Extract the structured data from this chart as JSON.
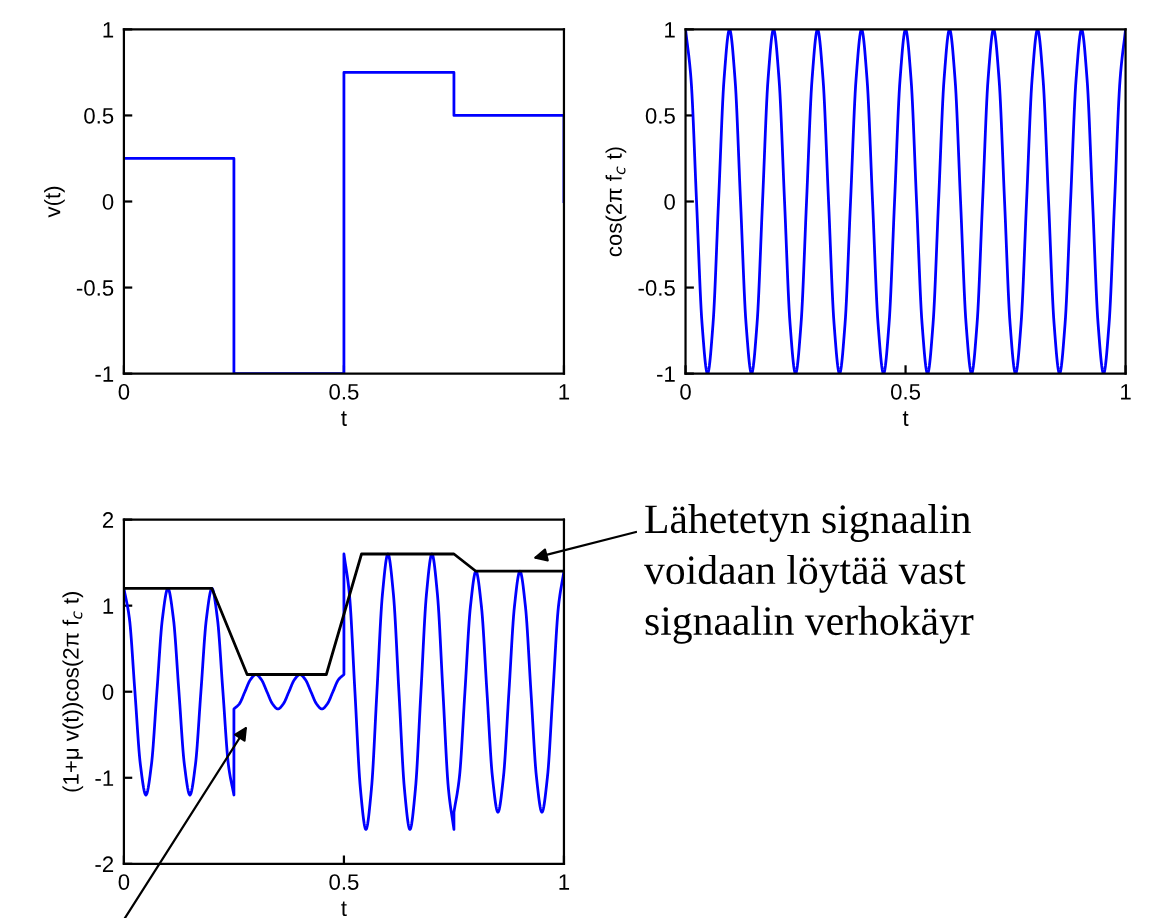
{
  "chart_data": [
    {
      "type": "line",
      "xlabel": "t",
      "ylabel": "v(t)",
      "xlim": [
        0,
        1
      ],
      "ylim": [
        -1,
        1
      ],
      "xticks": [
        0,
        0.5,
        1
      ],
      "yticks": [
        -1,
        -0.5,
        0,
        0.5,
        1
      ],
      "grid": false,
      "legend": false,
      "series": [
        {
          "color": "#0000ff",
          "x": [
            0,
            0.25,
            0.25,
            0.5,
            0.5,
            0.75,
            0.75,
            1,
            1
          ],
          "values": [
            0.25,
            0.25,
            -1,
            -1,
            0.75,
            0.75,
            0.5,
            0.5,
            0
          ]
        }
      ]
    },
    {
      "type": "line",
      "xlabel": "t",
      "ylabel": "cos(2π f$_{c}$ t)",
      "xlim": [
        0,
        1
      ],
      "ylim": [
        -1,
        1
      ],
      "xticks": [
        0,
        0.5,
        1
      ],
      "yticks": [
        -1,
        -0.5,
        0,
        0.5,
        1
      ],
      "grid": false,
      "legend": false,
      "series": [
        {
          "color": "#0000ff",
          "x": [
            0,
            0.0125,
            0.025,
            0.0375,
            0.05,
            0.0625,
            0.075,
            0.0875,
            0.1,
            0.1125,
            0.125,
            0.1375,
            0.15,
            0.1625,
            0.175,
            0.1875,
            0.2,
            0.2125,
            0.225,
            0.2375,
            0.25,
            0.2625,
            0.275,
            0.2875,
            0.3,
            0.3125,
            0.325,
            0.3375,
            0.35,
            0.3625,
            0.375,
            0.3875,
            0.4,
            0.4125,
            0.425,
            0.4375,
            0.45,
            0.4625,
            0.475,
            0.4875,
            0.5,
            0.5125,
            0.525,
            0.5375,
            0.55,
            0.5625,
            0.575,
            0.5875,
            0.6,
            0.6125,
            0.625,
            0.6375,
            0.65,
            0.6625,
            0.675,
            0.6875,
            0.7,
            0.7125,
            0.725,
            0.7375,
            0.75,
            0.7625,
            0.775,
            0.7875,
            0.8,
            0.8125,
            0.825,
            0.8375,
            0.85,
            0.8625,
            0.875,
            0.8875,
            0.9,
            0.9125,
            0.925,
            0.9375,
            0.95,
            0.9625,
            0.975,
            0.9875,
            1
          ],
          "values": [
            1,
            0.71,
            0,
            -0.71,
            -1,
            -0.71,
            0,
            0.71,
            1,
            0.71,
            0,
            -0.71,
            -1,
            -0.71,
            0,
            0.71,
            1,
            0.71,
            0,
            -0.71,
            -1,
            -0.71,
            0,
            0.71,
            1,
            0.71,
            0,
            -0.71,
            -1,
            -0.71,
            0,
            0.71,
            1,
            0.71,
            0,
            -0.71,
            -1,
            -0.71,
            0,
            0.71,
            1,
            0.71,
            0,
            -0.71,
            -1,
            -0.71,
            0,
            0.71,
            1,
            0.71,
            0,
            -0.71,
            -1,
            -0.71,
            0,
            0.71,
            1,
            0.71,
            0,
            -0.71,
            -1,
            -0.71,
            0,
            0.71,
            1,
            0.71,
            0,
            -0.71,
            -1,
            -0.71,
            0,
            0.71,
            1,
            0.71,
            0,
            -0.71,
            -1,
            -0.71,
            0,
            0.71,
            1
          ]
        }
      ]
    },
    {
      "type": "line",
      "xlabel": "t",
      "ylabel": "(1+μ v(t))cos(2π f$_{c}$ t)",
      "xlim": [
        0,
        1
      ],
      "ylim": [
        -2,
        2
      ],
      "xticks": [
        0,
        0.5,
        1
      ],
      "yticks": [
        -2,
        -1,
        0,
        1,
        2
      ],
      "grid": false,
      "legend": false,
      "annotations": [
        "Lähetetyn signaalin\nvoidaan löytää vast\nsignaalin verhokäyr"
      ],
      "series": [
        {
          "color": "#0000ff",
          "x": [
            0,
            0.0125,
            0.025,
            0.0375,
            0.05,
            0.0625,
            0.075,
            0.0875,
            0.1,
            0.1125,
            0.125,
            0.1375,
            0.15,
            0.1625,
            0.175,
            0.1875,
            0.2,
            0.2125,
            0.225,
            0.2375,
            0.25,
            0.25,
            0.2625,
            0.275,
            0.2875,
            0.3,
            0.3125,
            0.325,
            0.3375,
            0.35,
            0.3625,
            0.375,
            0.3875,
            0.4,
            0.4125,
            0.425,
            0.4375,
            0.45,
            0.4625,
            0.475,
            0.4875,
            0.5,
            0.5,
            0.5125,
            0.525,
            0.5375,
            0.55,
            0.5625,
            0.575,
            0.5875,
            0.6,
            0.6125,
            0.625,
            0.6375,
            0.65,
            0.6625,
            0.675,
            0.6875,
            0.7,
            0.7125,
            0.725,
            0.7375,
            0.75,
            0.75,
            0.7625,
            0.775,
            0.7875,
            0.8,
            0.8125,
            0.825,
            0.8375,
            0.85,
            0.8625,
            0.875,
            0.8875,
            0.9,
            0.9125,
            0.925,
            0.9375,
            0.95,
            0.9625,
            0.975,
            0.9875,
            1
          ],
          "values": [
            1.2,
            0.85,
            0,
            -0.85,
            -1.2,
            -0.85,
            0,
            0.85,
            1.2,
            0.85,
            0,
            -0.85,
            -1.2,
            -0.85,
            0,
            0.85,
            1.2,
            0.85,
            0,
            -0.85,
            -1.2,
            -0.2,
            -0.14,
            0,
            0.14,
            0.2,
            0.14,
            0,
            -0.14,
            -0.2,
            -0.14,
            0,
            0.14,
            0.2,
            0.14,
            0,
            -0.14,
            -0.2,
            -0.14,
            0,
            0.14,
            0.2,
            1.6,
            1.13,
            0,
            -1.13,
            -1.6,
            -1.13,
            0,
            1.13,
            1.6,
            1.13,
            0,
            -1.13,
            -1.6,
            -1.13,
            0,
            1.13,
            1.6,
            1.13,
            0,
            -1.13,
            -1.6,
            -1.4,
            -0.99,
            0,
            0.99,
            1.4,
            0.99,
            0,
            -0.99,
            -1.4,
            -0.99,
            0,
            0.99,
            1.4,
            0.99,
            0,
            -0.99,
            -1.4,
            -0.99,
            0,
            0.99,
            1.4
          ]
        },
        {
          "color": "#000000",
          "x": [
            0,
            0.2,
            0.28,
            0.46,
            0.54,
            0.75,
            0.8,
            1
          ],
          "values": [
            1.2,
            1.2,
            0.2,
            0.2,
            1.6,
            1.6,
            1.4,
            1.4
          ]
        }
      ]
    }
  ]
}
